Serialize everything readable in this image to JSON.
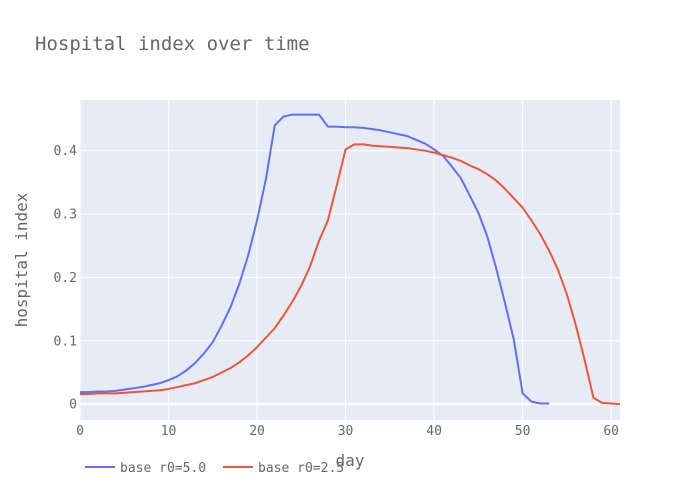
{
  "chart_data": {
    "type": "line",
    "title": "Hospital index over time",
    "xlabel": "day",
    "ylabel": "hospital index",
    "xlim": [
      0,
      61
    ],
    "ylim": [
      -0.025,
      0.48
    ],
    "x_ticks": [
      0,
      10,
      20,
      30,
      40,
      50,
      60
    ],
    "y_ticks": [
      0,
      0.1,
      0.2,
      0.3,
      0.4
    ],
    "y_tick_labels": [
      "0",
      "0.1",
      "0.2",
      "0.3",
      "0.4"
    ],
    "grid": true,
    "legend_position": "bottom-left",
    "plot_background": "#e5ecf6",
    "series": [
      {
        "name": "base r0=5.0",
        "color": "#636efa",
        "x": [
          0,
          1,
          2,
          3,
          4,
          5,
          6,
          7,
          8,
          9,
          10,
          11,
          12,
          13,
          14,
          15,
          16,
          17,
          18,
          19,
          20,
          21,
          22,
          23,
          24,
          25,
          26,
          27,
          28,
          29,
          30,
          31,
          32,
          33,
          34,
          35,
          36,
          37,
          38,
          39,
          40,
          41,
          42,
          43,
          44,
          45,
          46,
          47,
          48,
          49,
          50,
          51,
          52,
          53
        ],
        "y": [
          0.019,
          0.019,
          0.02,
          0.02,
          0.021,
          0.023,
          0.025,
          0.027,
          0.03,
          0.033,
          0.038,
          0.044,
          0.053,
          0.065,
          0.08,
          0.098,
          0.124,
          0.153,
          0.19,
          0.235,
          0.29,
          0.355,
          0.44,
          0.454,
          0.457,
          0.457,
          0.457,
          0.457,
          0.438,
          0.438,
          0.437,
          0.437,
          0.436,
          0.434,
          0.432,
          0.429,
          0.426,
          0.423,
          0.417,
          0.411,
          0.402,
          0.392,
          0.375,
          0.357,
          0.33,
          0.302,
          0.265,
          0.215,
          0.16,
          0.102,
          0.017,
          0.004,
          0.001,
          0.001
        ]
      },
      {
        "name": "base r0=2.5",
        "color": "#ef553b",
        "x": [
          0,
          1,
          2,
          3,
          4,
          5,
          6,
          7,
          8,
          9,
          10,
          11,
          12,
          13,
          14,
          15,
          16,
          17,
          18,
          19,
          20,
          21,
          22,
          23,
          24,
          25,
          26,
          27,
          28,
          29,
          30,
          31,
          32,
          33,
          34,
          35,
          36,
          37,
          38,
          39,
          40,
          41,
          42,
          43,
          44,
          45,
          46,
          47,
          48,
          49,
          50,
          51,
          52,
          53,
          54,
          55,
          56,
          57,
          58,
          59,
          60,
          61
        ],
        "y": [
          0.016,
          0.016,
          0.017,
          0.017,
          0.017,
          0.018,
          0.019,
          0.02,
          0.021,
          0.022,
          0.024,
          0.027,
          0.03,
          0.033,
          0.038,
          0.043,
          0.05,
          0.057,
          0.066,
          0.077,
          0.09,
          0.105,
          0.12,
          0.14,
          0.162,
          0.187,
          0.218,
          0.258,
          0.29,
          0.345,
          0.402,
          0.41,
          0.41,
          0.408,
          0.407,
          0.406,
          0.405,
          0.404,
          0.402,
          0.4,
          0.397,
          0.393,
          0.389,
          0.384,
          0.377,
          0.371,
          0.363,
          0.353,
          0.34,
          0.325,
          0.31,
          0.29,
          0.268,
          0.242,
          0.212,
          0.173,
          0.125,
          0.07,
          0.01,
          0.002,
          0.001,
          0.0
        ]
      }
    ]
  }
}
